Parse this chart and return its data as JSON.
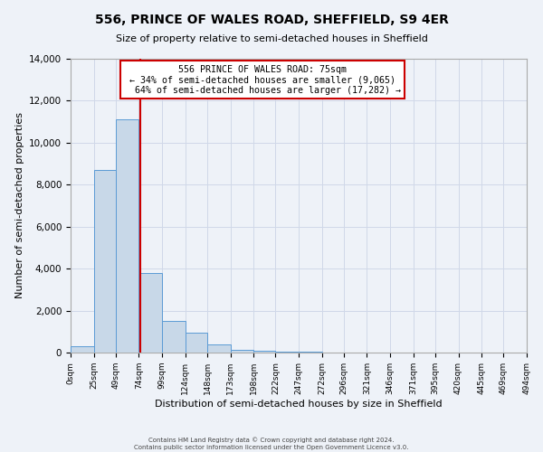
{
  "title": "556, PRINCE OF WALES ROAD, SHEFFIELD, S9 4ER",
  "subtitle": "Size of property relative to semi-detached houses in Sheffield",
  "xlabel": "Distribution of semi-detached houses by size in Sheffield",
  "ylabel": "Number of semi-detached properties",
  "bin_edges": [
    0,
    25,
    49,
    74,
    99,
    124,
    148,
    173,
    198,
    222,
    247,
    272,
    296,
    321,
    346,
    371,
    395,
    420,
    445,
    469,
    494
  ],
  "bin_counts": [
    300,
    8700,
    11100,
    3800,
    1500,
    950,
    400,
    130,
    100,
    60,
    30,
    0,
    0,
    0,
    0,
    0,
    0,
    0,
    0,
    0
  ],
  "tick_labels": [
    "0sqm",
    "25sqm",
    "49sqm",
    "74sqm",
    "99sqm",
    "124sqm",
    "148sqm",
    "173sqm",
    "198sqm",
    "222sqm",
    "247sqm",
    "272sqm",
    "296sqm",
    "321sqm",
    "346sqm",
    "371sqm",
    "395sqm",
    "420sqm",
    "445sqm",
    "469sqm",
    "494sqm"
  ],
  "property_size": 75,
  "property_label": "556 PRINCE OF WALES ROAD: 75sqm",
  "pct_smaller": 34,
  "pct_larger": 64,
  "count_smaller": 9065,
  "count_larger": 17282,
  "bar_color": "#c8d8e8",
  "bar_edge_color": "#5b9bd5",
  "line_color": "#cc0000",
  "annotation_box_color": "#ffffff",
  "annotation_box_edge": "#cc0000",
  "grid_color": "#d0d8e8",
  "background_color": "#eef2f8",
  "ylim": [
    0,
    14000
  ],
  "yticks": [
    0,
    2000,
    4000,
    6000,
    8000,
    10000,
    12000,
    14000
  ],
  "footer_line1": "Contains HM Land Registry data © Crown copyright and database right 2024.",
  "footer_line2": "Contains public sector information licensed under the Open Government Licence v3.0."
}
